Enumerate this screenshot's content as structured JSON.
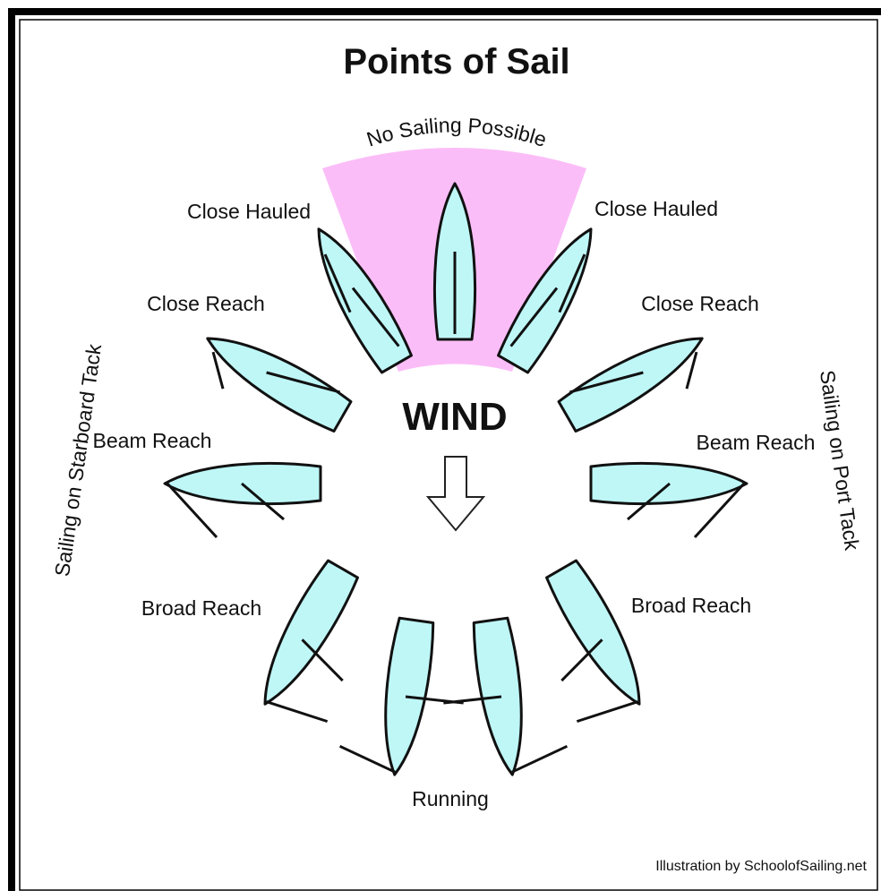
{
  "title": "Points of Sail",
  "no_go": "No Sailing Possible",
  "wind": "WIND",
  "left_labels": [
    "Close Hauled",
    "Close Reach",
    "Beam Reach",
    "Broad Reach"
  ],
  "right_labels": [
    "Close Hauled",
    "Close Reach",
    "Beam Reach",
    "Broad Reach"
  ],
  "starboard_tack": "Sailing on Starboard Tack",
  "port_tack": "Sailing on Port Tack",
  "running": "Running",
  "credit": "Illustration by SchoolofSailing.net"
}
